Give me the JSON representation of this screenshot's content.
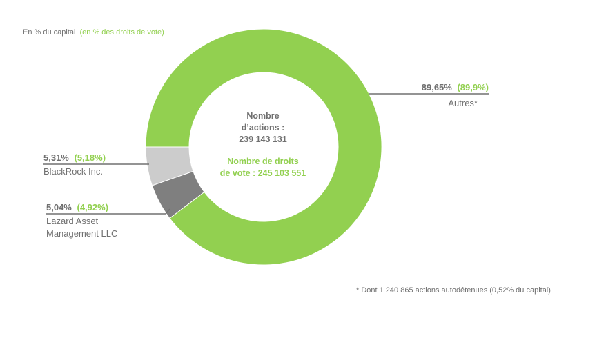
{
  "caption": {
    "capital": "En % du capital",
    "votes": "(en % des droits de vote)"
  },
  "center": {
    "shares_line1": "Nombre",
    "shares_line2": "d’actions :",
    "shares_value": "239 143 131",
    "votes_line1": "Nombre de droits",
    "votes_line2": "de vote : 245 103 551"
  },
  "footnote": "* Dont 1 240 865 actions autodétenues  (0,52% du capital)",
  "chart_data": {
    "type": "pie",
    "donut": true,
    "series": [
      {
        "label": "Autres*",
        "capital": 89.65,
        "votes": 89.9,
        "capital_text": "89,65%",
        "votes_text": "(89,9%)",
        "color": "#92d050"
      },
      {
        "label": "BlackRock Inc.",
        "capital": 5.31,
        "votes": 5.18,
        "capital_text": "5,31%",
        "votes_text": "(5,18%)",
        "color": "#cccccc"
      },
      {
        "label_lines": [
          "Lazard Asset",
          "Management LLC"
        ],
        "capital": 5.04,
        "votes": 4.92,
        "capital_text": "5,04%",
        "votes_text": "(4,92%)",
        "color": "#7f7f7f"
      }
    ]
  },
  "colors": {
    "accent_green": "#92d050",
    "text_grey": "#707070",
    "leader_line": "#707070"
  }
}
